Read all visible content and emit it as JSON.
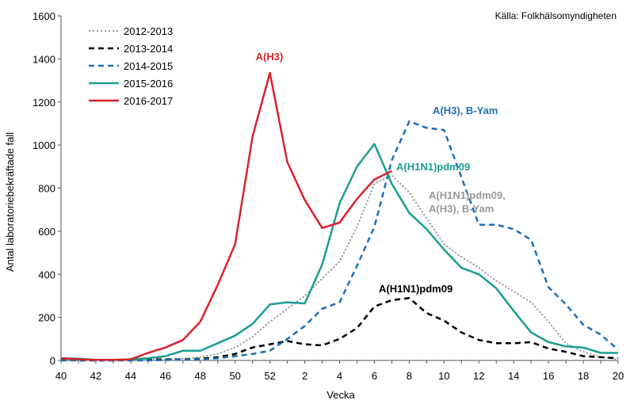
{
  "chart_data": {
    "type": "line",
    "source_note": "Källa: Folkhälsomyndigheten",
    "xlabel": "Vecka",
    "ylabel": "Antal laboratoriebekräftade fall",
    "ylim": [
      0,
      1600
    ],
    "yticks": [
      0,
      200,
      400,
      600,
      800,
      1000,
      1200,
      1400,
      1600
    ],
    "x_categories": [
      "40",
      "41",
      "42",
      "43",
      "44",
      "45",
      "46",
      "47",
      "48",
      "49",
      "50",
      "51",
      "52",
      "1",
      "2",
      "3",
      "4",
      "5",
      "6",
      "7",
      "8",
      "9",
      "10",
      "11",
      "12",
      "13",
      "14",
      "15",
      "16",
      "17",
      "18",
      "19",
      "20"
    ],
    "x_tick_labels": [
      "40",
      "42",
      "44",
      "46",
      "48",
      "50",
      "52",
      "2",
      "4",
      "6",
      "8",
      "10",
      "12",
      "14",
      "16",
      "18",
      "20"
    ],
    "grid": false,
    "legend_position": "top-left",
    "series": [
      {
        "name": "2012-2013",
        "color": "#999999",
        "dash": "dotted",
        "values": [
          5,
          2,
          0,
          0,
          2,
          3,
          5,
          8,
          15,
          30,
          60,
          110,
          180,
          240,
          300,
          380,
          460,
          620,
          820,
          860,
          780,
          660,
          540,
          480,
          430,
          370,
          320,
          270,
          180,
          80,
          40,
          15,
          5
        ]
      },
      {
        "name": "2013-2014",
        "color": "#000000",
        "dash": "dashed",
        "values": [
          2,
          0,
          0,
          0,
          2,
          5,
          5,
          5,
          8,
          15,
          30,
          60,
          75,
          90,
          75,
          70,
          100,
          150,
          250,
          280,
          290,
          220,
          185,
          130,
          95,
          80,
          80,
          85,
          55,
          40,
          20,
          15,
          10
        ]
      },
      {
        "name": "2014-2015",
        "color": "#1f6fb5",
        "dash": "dashed",
        "values": [
          0,
          0,
          0,
          0,
          0,
          0,
          2,
          5,
          5,
          10,
          20,
          30,
          45,
          100,
          160,
          240,
          270,
          440,
          620,
          930,
          1110,
          1080,
          1070,
          850,
          630,
          630,
          610,
          560,
          340,
          260,
          165,
          120,
          50
        ]
      },
      {
        "name": "2015-2016",
        "color": "#1a9e8f",
        "dash": "solid",
        "values": [
          10,
          8,
          3,
          2,
          5,
          10,
          20,
          45,
          45,
          80,
          115,
          170,
          260,
          270,
          265,
          445,
          730,
          900,
          1005,
          820,
          685,
          610,
          515,
          430,
          400,
          335,
          230,
          130,
          85,
          65,
          60,
          35,
          35
        ]
      },
      {
        "name": "2016-2017",
        "color": "#d9232e",
        "dash": "solid",
        "values": [
          10,
          5,
          3,
          3,
          5,
          35,
          60,
          95,
          180,
          350,
          540,
          1040,
          1335,
          920,
          745,
          615,
          640,
          750,
          840,
          880
        ]
      }
    ],
    "annotations": [
      {
        "text": "A(H3)",
        "color": "#d9232e"
      },
      {
        "text": "A(H3), B-Yam",
        "color": "#1f6fb5"
      },
      {
        "text": "A(H1N1)pdm09",
        "color": "#1a9e8f"
      },
      {
        "text": "A(H1N1)pdm09,",
        "color": "#999999"
      },
      {
        "text": "A(H3), B-Yam",
        "color": "#999999"
      },
      {
        "text": "A(H1N1)pdm09",
        "color": "#000000"
      }
    ]
  }
}
